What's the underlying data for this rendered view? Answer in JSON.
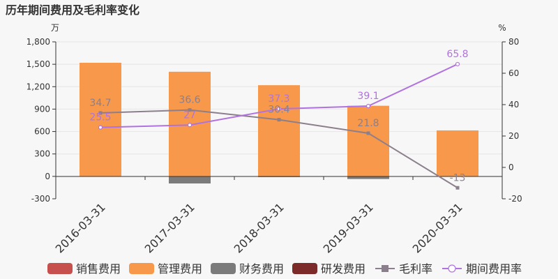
{
  "chart_data": {
    "type": "bar",
    "title": "历年期间费用及毛利率变化",
    "left_unit": "万",
    "right_unit": "%",
    "categories": [
      "2016-03-31",
      "2017-03-31",
      "2018-03-31",
      "2019-03-31",
      "2020-03-31"
    ],
    "left_axis": {
      "ylim": [
        -300,
        1800
      ],
      "ticks": [
        "-300",
        "0",
        "300",
        "600",
        "900",
        "1,200",
        "1,500",
        "1,800"
      ],
      "tick_values": [
        -300,
        0,
        300,
        600,
        900,
        1200,
        1500,
        1800
      ]
    },
    "right_axis": {
      "ylim": [
        -20,
        80
      ],
      "ticks": [
        "-20",
        "0",
        "20",
        "40",
        "60",
        "80"
      ],
      "tick_values": [
        -20,
        0,
        20,
        40,
        60,
        80
      ]
    },
    "bar_series": [
      {
        "name": "销售费用",
        "color": "#c6504e",
        "values": [
          0,
          0,
          0,
          0,
          0
        ]
      },
      {
        "name": "管理费用",
        "color": "#f7984a",
        "values": [
          1520,
          1400,
          1220,
          945,
          615
        ]
      },
      {
        "name": "财务费用",
        "color": "#7b7b7b",
        "values": [
          0,
          -95,
          -10,
          -35,
          0
        ]
      },
      {
        "name": "研发费用",
        "color": "#7c2a2a",
        "values": [
          0,
          0,
          0,
          0,
          0
        ]
      }
    ],
    "line_series": [
      {
        "name": "毛利率",
        "color": "#8c7f8c",
        "marker": "square",
        "values": [
          34.7,
          36.6,
          30.4,
          21.8,
          -13
        ],
        "labels": [
          "34.7",
          "36.6",
          "30.4",
          "21.8",
          "-13"
        ]
      },
      {
        "name": "期间费用率",
        "color": "#b072e0",
        "marker": "circle",
        "values": [
          25.5,
          27,
          37.3,
          39.1,
          65.8
        ],
        "labels": [
          "25.5",
          "27",
          "37.3",
          "39.1",
          "65.8"
        ]
      }
    ],
    "legend_position": "bottom"
  }
}
